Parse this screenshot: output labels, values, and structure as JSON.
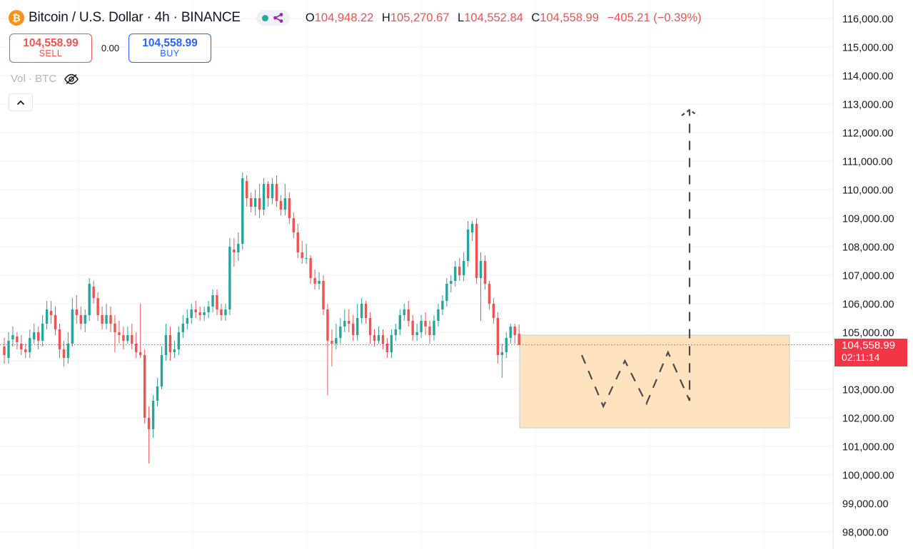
{
  "header": {
    "symbol_title": "Bitcoin / U.S. Dollar · 4h · BINANCE",
    "icon": "bitcoin-icon",
    "ohlc": {
      "open_label": "O",
      "open": "104,948.22",
      "high_label": "H",
      "high": "105,270.67",
      "low_label": "L",
      "low": "104,552.84",
      "close_label": "C",
      "close": "104,558.99",
      "change": "−405.21 (−0.39%)"
    }
  },
  "trade": {
    "sell_price": "104,558.99",
    "sell_label": "SELL",
    "spread": "0.00",
    "buy_price": "104,558.99",
    "buy_label": "BUY"
  },
  "volume": {
    "label": "Vol · BTC"
  },
  "price_scale": {
    "ticks": [
      "116,000.00",
      "115,000.00",
      "114,000.00",
      "113,000.00",
      "112,000.00",
      "111,000.00",
      "110,000.00",
      "109,000.00",
      "108,000.00",
      "107,000.00",
      "106,000.00",
      "105,000.00",
      "103,000.00",
      "102,000.00",
      "101,000.00",
      "100,000.00",
      "99,000.00",
      "98,000.00"
    ],
    "last_price": "104,558.99",
    "countdown": "02:11:14"
  },
  "colors": {
    "up": "#26a69a",
    "down": "#ef5350",
    "last_price_bg": "#f23645",
    "zone_fill": "#ffe3bf",
    "zone_border": "#d5d7dc",
    "projection": "#4a4a4a"
  },
  "chart_data": {
    "type": "candlestick",
    "ylim": [
      97700,
      116200
    ],
    "projection_zone": {
      "top": 104900,
      "bottom": 101650
    },
    "projection_path": [
      [
        0,
        104200
      ],
      [
        1,
        102400
      ],
      [
        2,
        104000
      ],
      [
        3,
        102500
      ],
      [
        4,
        104300
      ],
      [
        5,
        102600
      ],
      [
        5,
        112800
      ]
    ],
    "candles": [
      [
        104500,
        104200,
        104800,
        103900
      ],
      [
        104100,
        104700,
        105000,
        103900
      ],
      [
        104750,
        104900,
        105200,
        104500
      ],
      [
        104850,
        104650,
        105000,
        104400
      ],
      [
        104600,
        104400,
        104900,
        104200
      ],
      [
        104400,
        104300,
        104600,
        104100
      ],
      [
        104300,
        104800,
        105100,
        104100
      ],
      [
        104750,
        105000,
        105300,
        104600
      ],
      [
        105000,
        104700,
        105200,
        104400
      ],
      [
        104700,
        105300,
        105600,
        104500
      ],
      [
        105300,
        105800,
        106100,
        105100
      ],
      [
        105750,
        105600,
        106100,
        105300
      ],
      [
        105600,
        105100,
        105900,
        104900
      ],
      [
        105100,
        104400,
        105300,
        104100
      ],
      [
        104400,
        104100,
        104700,
        103800
      ],
      [
        104100,
        104600,
        105000,
        103900
      ],
      [
        104600,
        105800,
        106200,
        104500
      ],
      [
        105800,
        105600,
        106300,
        105300
      ],
      [
        105600,
        105300,
        105900,
        105100
      ],
      [
        105300,
        105600,
        105800,
        105000
      ],
      [
        105600,
        106700,
        106900,
        105400
      ],
      [
        106600,
        106200,
        106800,
        106000
      ],
      [
        106200,
        105600,
        106400,
        105400
      ],
      [
        105600,
        105300,
        105900,
        105100
      ],
      [
        105300,
        105600,
        106000,
        105100
      ],
      [
        105600,
        105300,
        105900,
        105000
      ],
      [
        105300,
        105000,
        105600,
        104300
      ],
      [
        105000,
        104900,
        105400,
        104600
      ],
      [
        104900,
        104700,
        105200,
        104400
      ],
      [
        104700,
        104900,
        105200,
        104600
      ],
      [
        104900,
        104600,
        105300,
        104400
      ],
      [
        104600,
        104300,
        105000,
        104100
      ],
      [
        104300,
        104200,
        106000,
        104100
      ],
      [
        104200,
        102000,
        104400,
        101800
      ],
      [
        102000,
        101600,
        102400,
        100400
      ],
      [
        101600,
        102600,
        102800,
        101300
      ],
      [
        102600,
        103100,
        103400,
        102400
      ],
      [
        103100,
        104200,
        104500,
        103000
      ],
      [
        104200,
        104900,
        105300,
        104000
      ],
      [
        104900,
        104300,
        105200,
        104000
      ],
      [
        104300,
        104400,
        104700,
        104100
      ],
      [
        104400,
        105000,
        105200,
        104200
      ],
      [
        105000,
        105300,
        105600,
        104800
      ],
      [
        105300,
        105500,
        105800,
        105100
      ],
      [
        105500,
        105800,
        106000,
        105300
      ],
      [
        105800,
        105700,
        106100,
        105500
      ],
      [
        105700,
        105600,
        105900,
        105400
      ],
      [
        105600,
        105700,
        105900,
        105400
      ],
      [
        105700,
        105900,
        106100,
        105500
      ],
      [
        105900,
        106300,
        106500,
        105700
      ],
      [
        106300,
        105800,
        106500,
        105600
      ],
      [
        105800,
        105600,
        106000,
        105400
      ],
      [
        105600,
        105800,
        106000,
        105400
      ],
      [
        105800,
        108000,
        108300,
        105600
      ],
      [
        107900,
        107800,
        108300,
        107300
      ],
      [
        107800,
        108100,
        108500,
        107500
      ],
      [
        108100,
        110400,
        110600,
        107900
      ],
      [
        110300,
        109700,
        110500,
        109400
      ],
      [
        109700,
        109400,
        109900,
        109200
      ],
      [
        109400,
        109700,
        110000,
        109100
      ],
      [
        109700,
        109300,
        110200,
        109000
      ],
      [
        109300,
        110200,
        110400,
        109100
      ],
      [
        110200,
        109700,
        110300,
        109400
      ],
      [
        109700,
        110200,
        110400,
        109500
      ],
      [
        110200,
        109600,
        110500,
        109400
      ],
      [
        109600,
        109300,
        109800,
        109100
      ],
      [
        109300,
        109700,
        110200,
        109100
      ],
      [
        109700,
        109000,
        109900,
        108800
      ],
      [
        109000,
        108500,
        109200,
        108300
      ],
      [
        108500,
        107800,
        108800,
        107600
      ],
      [
        107800,
        107600,
        108200,
        107400
      ],
      [
        107600,
        107600,
        108100,
        107400
      ],
      [
        107600,
        106900,
        107700,
        106700
      ],
      [
        106900,
        106700,
        107200,
        106500
      ],
      [
        106700,
        106800,
        107100,
        106500
      ],
      [
        106800,
        105800,
        107000,
        105600
      ],
      [
        105800,
        104700,
        106000,
        102800
      ],
      [
        104700,
        104600,
        105100,
        103800
      ],
      [
        104600,
        104800,
        105300,
        104400
      ],
      [
        104800,
        105200,
        105500,
        104600
      ],
      [
        105200,
        105400,
        105800,
        105000
      ],
      [
        105400,
        105300,
        105800,
        105000
      ],
      [
        105300,
        104900,
        105600,
        104700
      ],
      [
        104900,
        105500,
        106000,
        104700
      ],
      [
        105500,
        106000,
        106200,
        105300
      ],
      [
        106000,
        105500,
        106100,
        105300
      ],
      [
        105500,
        104900,
        105700,
        104600
      ],
      [
        104900,
        104700,
        105100,
        104500
      ],
      [
        104700,
        104900,
        105200,
        104600
      ],
      [
        104900,
        104600,
        105100,
        104400
      ],
      [
        104600,
        104300,
        104800,
        104100
      ],
      [
        104300,
        104900,
        105100,
        104100
      ],
      [
        104900,
        105100,
        105300,
        104700
      ],
      [
        105100,
        105600,
        105800,
        104900
      ],
      [
        105600,
        105800,
        106000,
        105400
      ],
      [
        105800,
        105400,
        106100,
        105200
      ],
      [
        105400,
        104900,
        105600,
        104700
      ],
      [
        104900,
        105000,
        105300,
        104700
      ],
      [
        105000,
        105400,
        105600,
        104800
      ],
      [
        105400,
        105200,
        105700,
        104900
      ],
      [
        105200,
        104900,
        105400,
        104600
      ],
      [
        104900,
        105400,
        105600,
        104700
      ],
      [
        105400,
        105800,
        106000,
        105200
      ],
      [
        105800,
        106100,
        106300,
        105600
      ],
      [
        106100,
        106700,
        106900,
        105900
      ],
      [
        106700,
        106800,
        107000,
        106400
      ],
      [
        106800,
        107300,
        107500,
        106600
      ],
      [
        107300,
        107000,
        107600,
        106800
      ],
      [
        107000,
        107500,
        107800,
        106800
      ],
      [
        107500,
        108600,
        108900,
        107300
      ],
      [
        108500,
        108800,
        108900,
        108200
      ],
      [
        108800,
        106900,
        109000,
        106700
      ],
      [
        106900,
        107500,
        107800,
        105400
      ],
      [
        107500,
        106700,
        107700,
        106500
      ],
      [
        106700,
        106000,
        106800,
        105800
      ],
      [
        106000,
        105500,
        106200,
        105300
      ],
      [
        105500,
        104200,
        105700,
        103900
      ],
      [
        104200,
        104300,
        104600,
        103400
      ],
      [
        104300,
        104800,
        105000,
        104100
      ],
      [
        104800,
        105200,
        105300,
        104600
      ],
      [
        105200,
        104900,
        105300,
        104600
      ],
      [
        104948.22,
        104558.99,
        105270.67,
        104552.84
      ]
    ]
  }
}
